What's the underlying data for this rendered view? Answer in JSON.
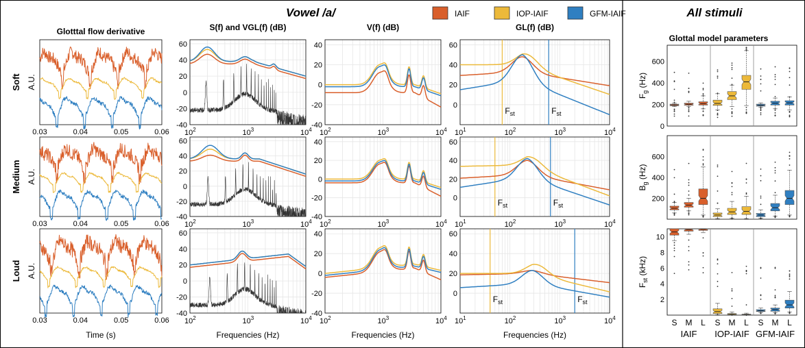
{
  "figure": {
    "left_title": "Vowel /a/",
    "right_title": "All stimuli",
    "legend": [
      {
        "name": "IAIF",
        "color": "#d95f2b"
      },
      {
        "name": "IOP-IAIF",
        "color": "#ecb93a"
      },
      {
        "name": "GFM-IAIF",
        "color": "#2f7fc1"
      }
    ],
    "row_labels": [
      "Soft",
      "Medium",
      "Loud"
    ],
    "column_titles": [
      "Glotttal flow derivative",
      "S(f) and VGL(f) (dB)",
      "V(f) (dB)",
      "GL(f) (dB)"
    ],
    "glottal_ylabel": "A.U.",
    "glottal_xlabel": "Time (s)",
    "freq_xlabel": "Frequencies (Hz)",
    "fst_label": "F",
    "fst_sub": "st",
    "right_panel_title": "Glottal model parameters",
    "box_groups": [
      "IAIF",
      "IOP-IAIF",
      "GFM-IAIF"
    ],
    "box_levels": [
      "S",
      "M",
      "L"
    ],
    "colors": {
      "iaif": "#d95f2b",
      "iop": "#ecb93a",
      "gfm": "#2f7fc1",
      "spectrum": "#333333",
      "grid": "#e6e6e6"
    }
  },
  "chart_data": [
    {
      "type": "line",
      "panel": "glottal_flow_derivative",
      "rows": [
        "Soft",
        "Medium",
        "Loud"
      ],
      "x": [
        0.03,
        0.06
      ],
      "xticks": [
        0.03,
        0.04,
        0.05,
        0.06
      ],
      "ylabel": "A.U.",
      "xlabel": "Time (s)",
      "series": [
        {
          "name": "IAIF"
        },
        {
          "name": "IOP-IAIF"
        },
        {
          "name": "GFM-IAIF"
        }
      ]
    },
    {
      "type": "line",
      "panel": "S(f) and VGL(f) (dB)",
      "xscale": "log",
      "xlim": [
        100,
        10000
      ],
      "xticks": [
        "10^2",
        "10^3",
        "10^4"
      ],
      "rows": [
        {
          "row": "Soft",
          "ylim": [
            -40,
            65
          ],
          "yticks": [
            -40,
            -20,
            0,
            20,
            40,
            60
          ]
        },
        {
          "row": "Medium",
          "ylim": [
            -40,
            65
          ],
          "yticks": [
            -40,
            -20,
            0,
            20,
            40,
            60
          ]
        },
        {
          "row": "Loud",
          "ylim": [
            -40,
            65
          ],
          "yticks": [
            -40,
            -20,
            0,
            20,
            40,
            60
          ]
        }
      ]
    },
    {
      "type": "line",
      "panel": "V(f) (dB)",
      "xscale": "log",
      "xlim": [
        100,
        10000
      ],
      "xticks": [
        "10^2",
        "10^3",
        "10^4"
      ],
      "rows": [
        {
          "row": "Soft",
          "ylim": [
            -40,
            45
          ],
          "yticks": [
            -40,
            -20,
            0,
            20,
            40
          ]
        },
        {
          "row": "Medium",
          "ylim": [
            -40,
            45
          ],
          "yticks": [
            -40,
            -20,
            0,
            20,
            40
          ]
        },
        {
          "row": "Loud",
          "ylim": [
            -40,
            45
          ],
          "yticks": [
            -40,
            -20,
            0,
            20,
            40
          ]
        }
      ]
    },
    {
      "type": "line",
      "panel": "GL(f) (dB)",
      "xscale": "log",
      "xlim": [
        10,
        10000
      ],
      "xticks": [
        "10^1",
        "10^2",
        "10^3",
        "10^4"
      ],
      "rows": [
        {
          "row": "Soft",
          "ylim": [
            -20,
            65
          ],
          "yticks": [
            0,
            20,
            40,
            60
          ],
          "fst_iop": 70,
          "fst_gfm": 600
        },
        {
          "row": "Medium",
          "ylim": [
            -20,
            65
          ],
          "yticks": [
            0,
            20,
            40,
            60
          ],
          "fst_iop": 50,
          "fst_gfm": 650
        },
        {
          "row": "Loud",
          "ylim": [
            -20,
            65
          ],
          "yticks": [
            0,
            20,
            40,
            60
          ],
          "fst_iop": 40,
          "fst_gfm": 2000
        }
      ]
    },
    {
      "type": "box",
      "panel": "Glottal model parameters",
      "categories": [
        "S",
        "M",
        "L",
        "S",
        "M",
        "L",
        "S",
        "M",
        "L"
      ],
      "groups": [
        "IAIF",
        "IOP-IAIF",
        "GFM-IAIF"
      ],
      "rows": [
        {
          "ylabel": "F",
          "ylabel_sub": "g",
          "ylabel_unit": "(Hz)",
          "ylim": [
            0,
            750
          ],
          "yticks": [
            0,
            200,
            400,
            600
          ],
          "boxes": [
            {
              "q1": 188,
              "med": 196,
              "q3": 203,
              "lo": 180,
              "hi": 212
            },
            {
              "q1": 193,
              "med": 202,
              "q3": 212,
              "lo": 180,
              "hi": 230
            },
            {
              "q1": 195,
              "med": 208,
              "q3": 225,
              "lo": 160,
              "hi": 280
            },
            {
              "q1": 192,
              "med": 210,
              "q3": 240,
              "lo": 150,
              "hi": 300
            },
            {
              "q1": 245,
              "med": 280,
              "q3": 320,
              "lo": 180,
              "hi": 380
            },
            {
              "q1": 340,
              "med": 410,
              "q3": 470,
              "lo": 190,
              "hi": 700
            },
            {
              "q1": 185,
              "med": 193,
              "q3": 203,
              "lo": 175,
              "hi": 215
            },
            {
              "q1": 195,
              "med": 212,
              "q3": 230,
              "lo": 160,
              "hi": 260
            },
            {
              "q1": 195,
              "med": 215,
              "q3": 235,
              "lo": 150,
              "hi": 270
            }
          ]
        },
        {
          "ylabel": "B",
          "ylabel_sub": "g",
          "ylabel_unit": "(Hz)",
          "ylim": [
            0,
            800
          ],
          "yticks": [
            200,
            400,
            600
          ],
          "boxes": [
            {
              "q1": 90,
              "med": 105,
              "q3": 125,
              "lo": 60,
              "hi": 160
            },
            {
              "q1": 115,
              "med": 135,
              "q3": 160,
              "lo": 80,
              "hi": 200
            },
            {
              "q1": 140,
              "med": 200,
              "q3": 290,
              "lo": 40,
              "hi": 500
            },
            {
              "q1": 25,
              "med": 40,
              "q3": 60,
              "lo": 5,
              "hi": 100
            },
            {
              "q1": 45,
              "med": 70,
              "q3": 105,
              "lo": 10,
              "hi": 170
            },
            {
              "q1": 45,
              "med": 75,
              "q3": 120,
              "lo": 5,
              "hi": 220
            },
            {
              "q1": 25,
              "med": 40,
              "q3": 55,
              "lo": 10,
              "hi": 90
            },
            {
              "q1": 80,
              "med": 110,
              "q3": 150,
              "lo": 30,
              "hi": 230
            },
            {
              "q1": 140,
              "med": 200,
              "q3": 275,
              "lo": 40,
              "hi": 470
            }
          ]
        },
        {
          "ylabel": "F",
          "ylabel_sub": "st",
          "ylabel_unit": "(kHz)",
          "ylim": [
            0,
            11
          ],
          "yticks": [
            2,
            4,
            6,
            8,
            10
          ],
          "boxes": [
            {
              "q1": 10.2,
              "med": 10.6,
              "q3": 11.0,
              "lo": 9.5,
              "hi": 11.0
            },
            {
              "q1": 10.7,
              "med": 10.9,
              "q3": 11.0,
              "lo": 10.3,
              "hi": 11.0
            },
            {
              "q1": 10.8,
              "med": 10.95,
              "q3": 11.0,
              "lo": 10.5,
              "hi": 11.0
            },
            {
              "q1": 0.2,
              "med": 0.45,
              "q3": 0.8,
              "lo": 0.05,
              "hi": 1.5
            },
            {
              "q1": 0.05,
              "med": 0.1,
              "q3": 0.2,
              "lo": 0.02,
              "hi": 0.4
            },
            {
              "q1": 0.03,
              "med": 0.06,
              "q3": 0.12,
              "lo": 0.01,
              "hi": 0.25
            },
            {
              "q1": 0.45,
              "med": 0.55,
              "q3": 0.7,
              "lo": 0.3,
              "hi": 0.9
            },
            {
              "q1": 0.5,
              "med": 0.7,
              "q3": 0.9,
              "lo": 0.3,
              "hi": 1.3
            },
            {
              "q1": 0.9,
              "med": 1.3,
              "q3": 1.9,
              "lo": 0.4,
              "hi": 3.0
            }
          ]
        }
      ]
    }
  ]
}
